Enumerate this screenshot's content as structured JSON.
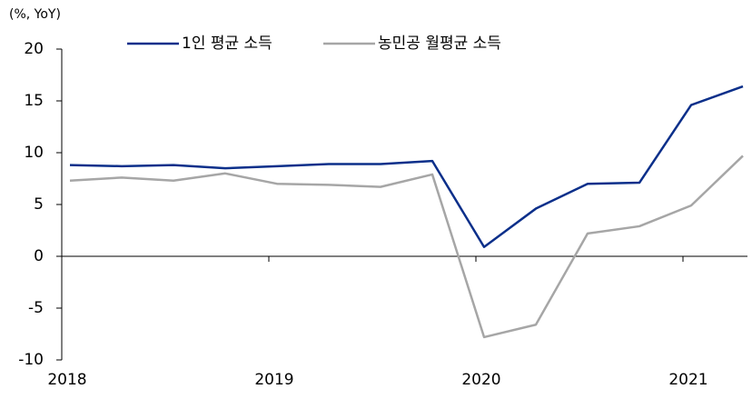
{
  "chart_data": {
    "type": "line",
    "unit_label": "(%, YoY)",
    "categories": [
      "2018",
      null,
      null,
      null,
      "2019",
      null,
      null,
      null,
      "2020",
      null,
      null,
      null,
      "2021",
      null
    ],
    "series": [
      {
        "name": "1인 평균 소득",
        "color": "#0b2f8a",
        "values": [
          8.8,
          8.7,
          8.8,
          8.5,
          8.7,
          8.9,
          8.9,
          9.2,
          0.9,
          4.6,
          7.0,
          7.1,
          14.6,
          16.4
        ]
      },
      {
        "name": "농민공 월평균 소득",
        "color": "#a6a6a6",
        "values": [
          7.3,
          7.6,
          7.3,
          8.0,
          7.0,
          6.9,
          6.7,
          7.9,
          -7.8,
          -6.6,
          2.2,
          2.9,
          4.9,
          9.7
        ]
      }
    ],
    "ylim": [
      -10,
      20
    ],
    "yticks": [
      -10,
      -5,
      0,
      5,
      10,
      15,
      20
    ],
    "legend": "top"
  }
}
